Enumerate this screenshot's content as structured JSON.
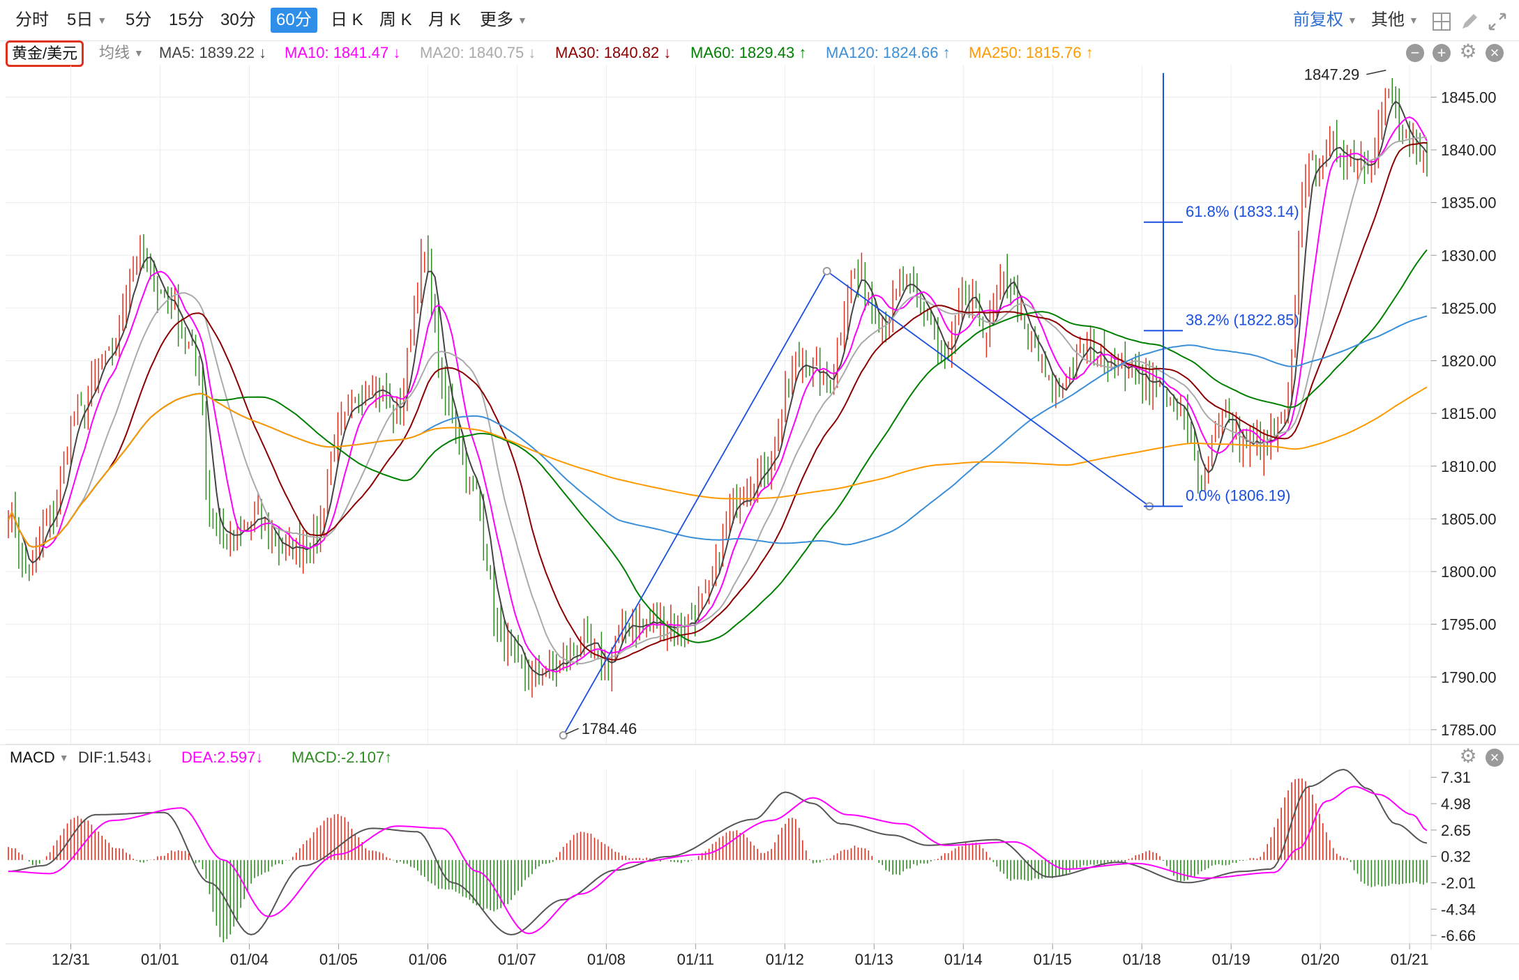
{
  "toolbar": {
    "tabs": [
      {
        "label": "分时",
        "active": false
      },
      {
        "label": "5日",
        "active": false,
        "dropdown": true
      },
      {
        "label": "5分",
        "active": false
      },
      {
        "label": "15分",
        "active": false
      },
      {
        "label": "30分",
        "active": false
      },
      {
        "label": "60分",
        "active": true
      },
      {
        "label": "日 K",
        "active": false
      },
      {
        "label": "周 K",
        "active": false
      },
      {
        "label": "月 K",
        "active": false
      },
      {
        "label": "更多",
        "active": false,
        "dropdown": true
      }
    ],
    "adjust_label": "前复权",
    "other_label": "其他",
    "icons": [
      "grid-icon",
      "pencil-icon",
      "expand-icon"
    ]
  },
  "symbol": "黄金/美元",
  "ma_bar": {
    "mode_label": "均线",
    "items": [
      {
        "label": "MA5: 1839.22 ↓",
        "color": "#444444"
      },
      {
        "label": "MA10: 1841.47 ↓",
        "color": "#ff00ff"
      },
      {
        "label": "MA20: 1840.75 ↓",
        "color": "#aaaaaa"
      },
      {
        "label": "MA30: 1840.82 ↓",
        "color": "#8b0000"
      },
      {
        "label": "MA60: 1829.43 ↑",
        "color": "#008000"
      },
      {
        "label": "MA120: 1824.66 ↑",
        "color": "#3a8fd8"
      },
      {
        "label": "MA250: 1815.76 ↑",
        "color": "#ff9900"
      }
    ]
  },
  "macd_bar": {
    "name": "MACD",
    "dif": "DIF:1.543↓",
    "dea": "DEA:2.597↓",
    "macd": "MACD:-2.107↑",
    "dif_color": "#333333",
    "dea_color": "#ff00ff",
    "macd_color": "#2e8b22"
  },
  "chart_data": {
    "type": "candlestick",
    "price_axis": {
      "ticks": [
        "1845.00",
        "1840.00",
        "1835.00",
        "1830.00",
        "1825.00",
        "1820.00",
        "1815.00",
        "1810.00",
        "1805.00",
        "1800.00",
        "1795.00",
        "1790.00",
        "1785.00"
      ],
      "ylim": [
        1784,
        1848
      ]
    },
    "x_ticks": [
      "12/31",
      "01/01",
      "01/04",
      "01/05",
      "01/06",
      "01/07",
      "01/08",
      "01/11",
      "01/12",
      "01/13",
      "01/14",
      "01/15",
      "01/18",
      "01/19",
      "01/20",
      "01/21"
    ],
    "annotations": {
      "high_label": "1847.29",
      "low_label": "1784.46",
      "fib_618": "61.8% (1833.14)",
      "fib_382": "38.2% (1822.85)",
      "fib_000": "0.0% (1806.19)"
    },
    "macd_axis": {
      "ticks": [
        "7.31",
        "4.98",
        "2.65",
        "0.32",
        "-2.01",
        "-4.34",
        "-6.66"
      ],
      "ylim": [
        -7.4,
        8.0
      ]
    },
    "ma_colors": {
      "MA5": "#444444",
      "MA10": "#ff00ff",
      "MA20": "#aaaaaa",
      "MA30": "#8b0000",
      "MA60": "#008000",
      "MA120": "#3a8fd8",
      "MA250": "#ff9900"
    },
    "up_color": "#e0301e",
    "down_color": "#2e8b22",
    "trend_color": "#1a4fe0",
    "close_anchors": [
      [
        0,
        1806
      ],
      [
        5,
        1800
      ],
      [
        12,
        1805
      ],
      [
        20,
        1815
      ],
      [
        28,
        1820
      ],
      [
        38,
        1830
      ],
      [
        45,
        1826
      ],
      [
        55,
        1820
      ],
      [
        58,
        1805
      ],
      [
        64,
        1803
      ],
      [
        72,
        1805
      ],
      [
        80,
        1802
      ],
      [
        88,
        1803
      ],
      [
        96,
        1814
      ],
      [
        105,
        1818
      ],
      [
        112,
        1815
      ],
      [
        120,
        1830
      ],
      [
        126,
        1816
      ],
      [
        134,
        1808
      ],
      [
        142,
        1794
      ],
      [
        150,
        1790
      ],
      [
        158,
        1791
      ],
      [
        166,
        1793
      ],
      [
        172,
        1791
      ],
      [
        178,
        1795
      ],
      [
        186,
        1795
      ],
      [
        195,
        1795
      ],
      [
        200,
        1797
      ],
      [
        210,
        1807
      ],
      [
        218,
        1810
      ],
      [
        228,
        1820
      ],
      [
        236,
        1818
      ],
      [
        244,
        1828
      ],
      [
        252,
        1824
      ],
      [
        258,
        1827
      ],
      [
        264,
        1825
      ],
      [
        270,
        1820
      ],
      [
        276,
        1826
      ],
      [
        282,
        1823
      ],
      [
        288,
        1828
      ],
      [
        294,
        1822
      ],
      [
        302,
        1817
      ],
      [
        310,
        1821
      ],
      [
        318,
        1820
      ],
      [
        324,
        1819
      ],
      [
        330,
        1818
      ],
      [
        338,
        1815
      ],
      [
        344,
        1809
      ],
      [
        350,
        1815
      ],
      [
        356,
        1812
      ],
      [
        362,
        1812
      ],
      [
        368,
        1814
      ],
      [
        374,
        1838
      ],
      [
        382,
        1840
      ],
      [
        392,
        1839
      ],
      [
        398,
        1845
      ],
      [
        404,
        1840
      ],
      [
        409,
        1839
      ]
    ],
    "macd_hist_anchors": [
      [
        0,
        1.2
      ],
      [
        8,
        -0.4
      ],
      [
        20,
        3.8
      ],
      [
        32,
        1.0
      ],
      [
        38,
        -0.2
      ],
      [
        50,
        0.9
      ],
      [
        55,
        -0.3
      ],
      [
        62,
        -7.2
      ],
      [
        72,
        -1.5
      ],
      [
        78,
        -0.3
      ],
      [
        95,
        4.0
      ],
      [
        105,
        0.8
      ],
      [
        114,
        -0.3
      ],
      [
        125,
        -2.5
      ],
      [
        140,
        -4.5
      ],
      [
        155,
        -0.4
      ],
      [
        165,
        2.5
      ],
      [
        180,
        0.2
      ],
      [
        195,
        -0.2
      ],
      [
        210,
        2.6
      ],
      [
        218,
        0.6
      ],
      [
        226,
        3.8
      ],
      [
        232,
        -0.3
      ],
      [
        245,
        1.2
      ],
      [
        256,
        -1.3
      ],
      [
        262,
        -0.4
      ],
      [
        278,
        1.5
      ],
      [
        290,
        -1.8
      ],
      [
        300,
        -1.6
      ],
      [
        312,
        -0.5
      ],
      [
        320,
        -0.2
      ],
      [
        330,
        0.8
      ],
      [
        338,
        -1.8
      ],
      [
        348,
        -0.5
      ],
      [
        360,
        0.2
      ],
      [
        372,
        7.3
      ],
      [
        385,
        0.2
      ],
      [
        392,
        -2.3
      ],
      [
        405,
        -2.0
      ],
      [
        409,
        -2.1
      ]
    ],
    "dif_anchors": [
      [
        0,
        -1.0
      ],
      [
        10,
        -0.5
      ],
      [
        25,
        4.0
      ],
      [
        45,
        4.2
      ],
      [
        58,
        -2.0
      ],
      [
        70,
        -6.6
      ],
      [
        85,
        -0.5
      ],
      [
        105,
        2.8
      ],
      [
        118,
        2.5
      ],
      [
        128,
        -2.0
      ],
      [
        145,
        -6.6
      ],
      [
        160,
        -3.5
      ],
      [
        175,
        -0.9
      ],
      [
        190,
        0.3
      ],
      [
        215,
        3.6
      ],
      [
        224,
        6.0
      ],
      [
        232,
        5.0
      ],
      [
        240,
        3.2
      ],
      [
        255,
        2.2
      ],
      [
        265,
        1.3
      ],
      [
        285,
        1.8
      ],
      [
        300,
        -1.5
      ],
      [
        320,
        -0.2
      ],
      [
        340,
        -2.0
      ],
      [
        356,
        -1.0
      ],
      [
        364,
        -0.8
      ],
      [
        375,
        6.5
      ],
      [
        385,
        8.0
      ],
      [
        392,
        6.3
      ],
      [
        400,
        3.2
      ],
      [
        409,
        1.5
      ]
    ],
    "dea_anchors": [
      [
        0,
        -1.0
      ],
      [
        12,
        -1.2
      ],
      [
        30,
        3.5
      ],
      [
        50,
        4.6
      ],
      [
        62,
        0.0
      ],
      [
        75,
        -5.0
      ],
      [
        95,
        0.5
      ],
      [
        112,
        3.0
      ],
      [
        125,
        2.8
      ],
      [
        135,
        -1.0
      ],
      [
        150,
        -6.5
      ],
      [
        165,
        -3.0
      ],
      [
        180,
        -0.2
      ],
      [
        200,
        0.5
      ],
      [
        220,
        3.5
      ],
      [
        232,
        5.5
      ],
      [
        242,
        4.0
      ],
      [
        258,
        3.2
      ],
      [
        270,
        1.3
      ],
      [
        290,
        1.6
      ],
      [
        305,
        -0.8
      ],
      [
        325,
        -0.3
      ],
      [
        345,
        -1.6
      ],
      [
        365,
        -1.1
      ],
      [
        372,
        1.0
      ],
      [
        380,
        5.2
      ],
      [
        388,
        6.5
      ],
      [
        395,
        5.8
      ],
      [
        405,
        4.0
      ],
      [
        409,
        2.6
      ]
    ]
  }
}
